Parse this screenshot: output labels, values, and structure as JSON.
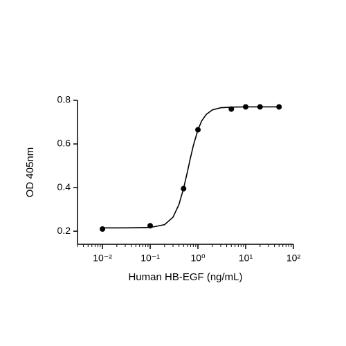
{
  "chart_data": {
    "type": "scatter",
    "xlabel": "Human HB-EGF (ng/mL)",
    "ylabel": "OD 405nm",
    "xscale": "log",
    "xlim": [
      0.003,
      100
    ],
    "ylim": [
      0.14,
      0.8
    ],
    "xticks": [
      {
        "value": 0.01,
        "label": "10⁻²"
      },
      {
        "value": 0.1,
        "label": "10⁻¹"
      },
      {
        "value": 1,
        "label": "10⁰"
      },
      {
        "value": 10,
        "label": "10¹"
      },
      {
        "value": 100,
        "label": "10²"
      }
    ],
    "xminorticks": [
      0.003,
      0.004,
      0.005,
      0.006,
      0.007,
      0.008,
      0.009,
      0.02,
      0.03,
      0.04,
      0.05,
      0.06,
      0.07,
      0.08,
      0.09,
      0.2,
      0.3,
      0.4,
      0.5,
      0.6,
      0.7,
      0.8,
      0.9,
      2,
      3,
      4,
      5,
      6,
      7,
      8,
      9,
      20,
      30,
      40,
      50,
      60,
      70,
      80,
      90
    ],
    "yticks": [
      0.2,
      0.4,
      0.6,
      0.8
    ],
    "points": {
      "color": "#000000",
      "x": [
        0.01,
        0.1,
        0.5,
        1,
        5,
        10,
        20,
        50
      ],
      "values": [
        0.21,
        0.225,
        0.395,
        0.665,
        0.76,
        0.77,
        0.77,
        0.77
      ]
    },
    "curve": {
      "color": "#000000",
      "x": [
        0.01,
        0.03,
        0.1,
        0.2,
        0.3,
        0.4,
        0.5,
        0.6,
        0.7,
        0.8,
        1,
        1.2,
        1.5,
        2,
        3,
        5,
        10,
        20,
        50
      ],
      "values": [
        0.215,
        0.215,
        0.217,
        0.23,
        0.264,
        0.322,
        0.396,
        0.471,
        0.538,
        0.592,
        0.665,
        0.706,
        0.736,
        0.756,
        0.766,
        0.769,
        0.77,
        0.77,
        0.77
      ]
    }
  }
}
